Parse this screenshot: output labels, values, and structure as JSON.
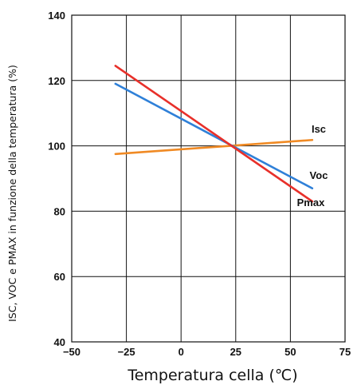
{
  "chart_data": {
    "type": "line",
    "xlabel": "Temperatura cella (℃)",
    "ylabel": "ISC, VOC e PMAX in funzione della temperatura (%)",
    "xlim": [
      -50,
      75
    ],
    "ylim": [
      40,
      140
    ],
    "x_ticks": [
      -50,
      -25,
      0,
      25,
      50,
      75
    ],
    "y_ticks": [
      40,
      60,
      80,
      100,
      120,
      140
    ],
    "x_tick_labels": [
      "−50",
      "−25",
      "0",
      "25",
      "50",
      "75"
    ],
    "y_tick_labels": [
      "40",
      "60",
      "80",
      "100",
      "120",
      "140"
    ],
    "grid": true,
    "series": [
      {
        "name": "Isc",
        "color": "#f08a24",
        "x": [
          -30,
          60
        ],
        "y": [
          97.5,
          101.8
        ]
      },
      {
        "name": "Voc",
        "color": "#2f80d8",
        "x": [
          -30,
          60
        ],
        "y": [
          119,
          87
        ]
      },
      {
        "name": "Pmax",
        "color": "#e8302a",
        "x": [
          -30,
          60
        ],
        "y": [
          124.5,
          83
        ]
      }
    ]
  }
}
